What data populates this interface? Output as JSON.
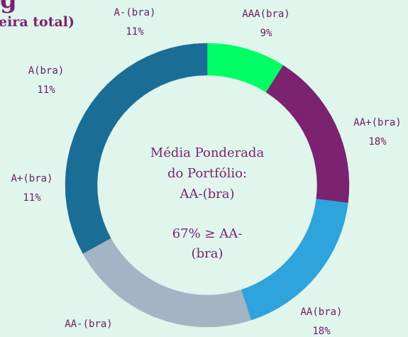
{
  "chart_data": {
    "type": "donut",
    "title": "g",
    "subtitle": "eira total)",
    "categories": [
      "AAA(bra)",
      "AA+(bra)",
      "AA(bra)",
      "AA-(bra)",
      "A+(bra)",
      "A(bra)",
      "A-(bra)"
    ],
    "values": [
      9,
      18,
      18,
      22,
      11,
      11,
      11
    ],
    "value_labels": [
      "9%",
      "18%",
      "18%",
      null,
      "11%",
      "11%",
      "11%"
    ],
    "colors": [
      "#00ff66",
      "#7b2370",
      "#2ea3dc",
      "#a3b5c4",
      "#1a6e96",
      "#1a6e96",
      "#1a6e96"
    ],
    "center_text": [
      "Média Ponderada",
      "do Portfólio:",
      "AA-(bra)",
      "67% ≥ AA-",
      "(bra)"
    ]
  }
}
